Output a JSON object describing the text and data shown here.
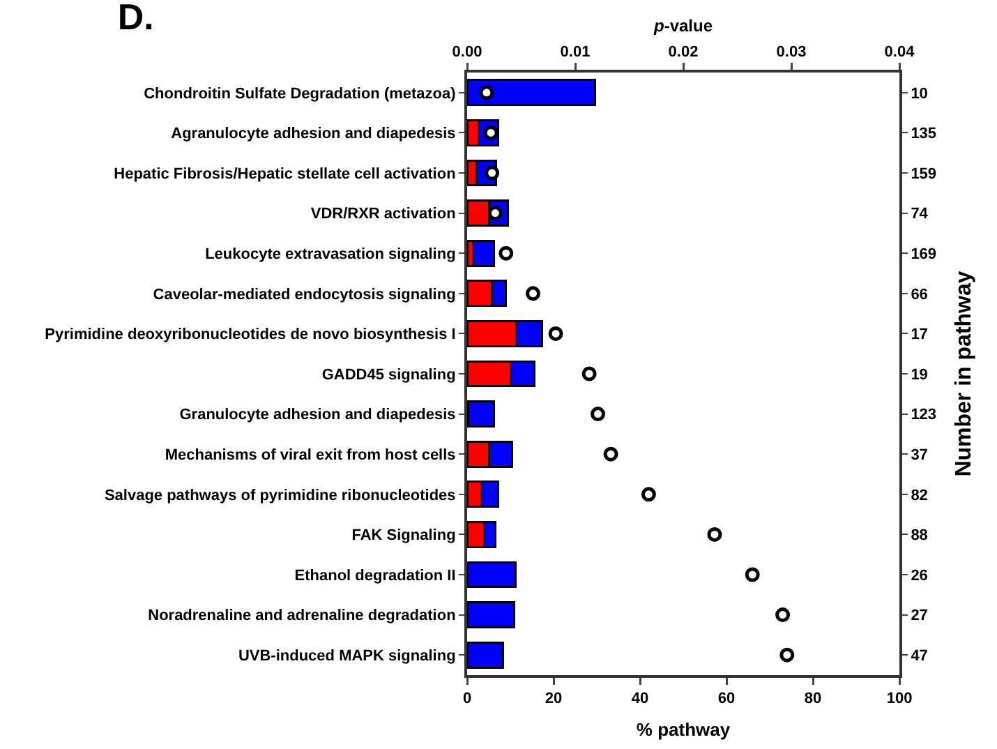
{
  "chart_data": {
    "type": "bar",
    "orientation": "horizontal",
    "stacked": true,
    "title": "D.",
    "categories": [
      "Chondroitin Sulfate Degradation (metazoa)",
      "Agranulocyte adhesion and diapedesis",
      "Hepatic Fibrosis/Hepatic stellate cell activation",
      "VDR/RXR activation",
      "Leukocyte extravasation signaling",
      "Caveolar-mediated endocytosis signaling",
      "Pyrimidine deoxyribonucleotides de novo biosynthesis I",
      "GADD45 signaling",
      "Granulocyte adhesion and diapedesis",
      "Mechanisms of viral exit from host cells",
      "Salvage pathways of pyrimidine ribonucleotides",
      "FAK Signaling",
      "Ethanol degradation II",
      "Noradrenaline and adrenaline degradation",
      "UVB-induced MAPK signaling"
    ],
    "y2_categories": [
      "10",
      "135",
      "159",
      "74",
      "169",
      "66",
      "17",
      "19",
      "123",
      "37",
      "82",
      "88",
      "26",
      "27",
      "47"
    ],
    "series": [
      {
        "color": "#ff0000",
        "values": [
          0,
          2.6,
          2.1,
          5.0,
          1.4,
          5.8,
          11.4,
          10.1,
          0.3,
          5.0,
          3.3,
          4.0,
          0,
          0,
          0
        ]
      },
      {
        "color": "#0000ff",
        "values": [
          29.6,
          4.5,
          4.6,
          4.4,
          4.8,
          3.1,
          6.0,
          5.5,
          5.9,
          5.4,
          3.9,
          2.5,
          11.2,
          10.9,
          8.3
        ]
      },
      {
        "type": "scatter",
        "axis": "x2",
        "color": "#000000",
        "marker": "circle",
        "values": [
          0.0018,
          0.0022,
          0.0023,
          0.0026,
          0.0036,
          0.0061,
          0.0082,
          0.0113,
          0.0121,
          0.0133,
          0.0168,
          0.0229,
          0.0264,
          0.0292,
          0.0296
        ]
      }
    ],
    "xlabel": "% pathway",
    "xlim": [
      0,
      100
    ],
    "xticks": [
      0,
      20,
      40,
      60,
      80,
      100
    ],
    "x2label": "p-value",
    "x2lim": [
      0,
      0.04
    ],
    "x2ticks": [
      {
        "value": 0,
        "label": "0.00"
      },
      0.01,
      0.02,
      0.03,
      0.04
    ],
    "y2label": "Number in pathway",
    "grid": false
  }
}
